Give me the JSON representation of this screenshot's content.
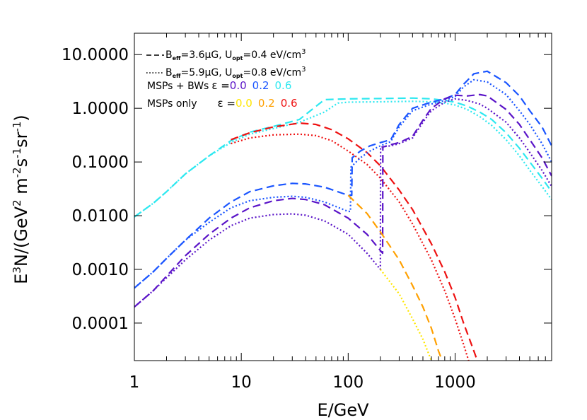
{
  "chart_data": {
    "type": "line",
    "xlabel": {
      "main": "E/GeV"
    },
    "ylabel": {
      "p1": "E",
      "p1sup": "3",
      "p2": "N/(GeV",
      "p2sup": "2",
      "p3": " m",
      "p3sup": "-2",
      "p4": "s",
      "p4sup": "-1",
      "p5": "sr",
      "p5sup": "-1",
      "p6": ")"
    },
    "xscale": "log",
    "yscale": "log",
    "xlim": [
      1,
      8000
    ],
    "ylim": [
      2e-05,
      25
    ],
    "xticks": [
      {
        "v": 1,
        "label": "1"
      },
      {
        "v": 10,
        "label": "10"
      },
      {
        "v": 100,
        "label": "100"
      },
      {
        "v": 1000,
        "label": "1000"
      }
    ],
    "yticks": [
      {
        "v": 0.0001,
        "label": "0.0001"
      },
      {
        "v": 0.001,
        "label": "0.0010"
      },
      {
        "v": 0.01,
        "label": "0.0100"
      },
      {
        "v": 0.1,
        "label": "0.1000"
      },
      {
        "v": 1,
        "label": "1.0000"
      },
      {
        "v": 10,
        "label": "10.0000"
      }
    ],
    "colors": {
      "purple": "#5a14c8",
      "blue": "#1a55ff",
      "cyan": "#2de8f0",
      "yellow": "#ffe600",
      "orange": "#ffa000",
      "red": "#ee1111"
    },
    "legend": {
      "line1": {
        "b": "B",
        "bsub": "eff",
        "bval": "=3.6μG, U",
        "usub": "opt",
        "uval": "=0.4 eV/cm",
        "usup": "3"
      },
      "line2": {
        "b": "B",
        "bsub": "eff",
        "bval": "=5.9μG, U",
        "usub": "opt",
        "uval": "=0.8 eV/cm",
        "usup": "3"
      },
      "line3": {
        "label": "MSPs + BWs",
        "eps": "ε =",
        "v1": "0.0",
        "v2": "0.2",
        "v3": "0.6"
      },
      "line4": {
        "label": "MSPs only",
        "eps": "ε =",
        "v1": "0.0",
        "v2": "0.2",
        "v3": "0.6"
      }
    },
    "series": [
      {
        "color": "cyan",
        "dash": "dash",
        "x": [
          1,
          1.5,
          2,
          3,
          5,
          8,
          12,
          20,
          35,
          60,
          100,
          200,
          400,
          600,
          800,
          1000,
          1300,
          1700,
          2200,
          3000,
          4000,
          5000,
          6500,
          8000
        ],
        "y": [
          0.0095,
          0.017,
          0.028,
          0.06,
          0.13,
          0.25,
          0.36,
          0.46,
          0.62,
          1.45,
          1.5,
          1.52,
          1.55,
          1.5,
          1.4,
          1.3,
          1.1,
          0.85,
          0.62,
          0.35,
          0.18,
          0.1,
          0.05,
          0.028
        ]
      },
      {
        "color": "cyan",
        "dash": "dot",
        "x": [
          1,
          1.5,
          2,
          3,
          5,
          8,
          12,
          20,
          35,
          60,
          80,
          100,
          200,
          400,
          600,
          800,
          1000,
          1300,
          1700,
          2200,
          3000,
          4000,
          5000,
          6500,
          8000
        ],
        "y": [
          0.0095,
          0.017,
          0.028,
          0.06,
          0.13,
          0.23,
          0.33,
          0.42,
          0.55,
          0.85,
          1.25,
          1.3,
          1.32,
          1.35,
          1.32,
          1.25,
          1.15,
          0.95,
          0.7,
          0.48,
          0.26,
          0.13,
          0.07,
          0.035,
          0.02
        ]
      },
      {
        "color": "red",
        "dash": "dash",
        "x": [
          8,
          12,
          20,
          35,
          50,
          70,
          100,
          150,
          200,
          300,
          400,
          600,
          800,
          1000,
          1200,
          1500,
          1700
        ],
        "y": [
          0.26,
          0.35,
          0.45,
          0.53,
          0.5,
          0.4,
          0.27,
          0.15,
          0.085,
          0.03,
          0.013,
          0.003,
          0.0009,
          0.0003,
          0.0001,
          3e-05,
          1.5e-05
        ]
      },
      {
        "color": "red",
        "dash": "dot",
        "x": [
          8,
          12,
          20,
          35,
          50,
          70,
          100,
          150,
          200,
          300,
          400,
          600,
          800,
          1000,
          1200,
          1400
        ],
        "y": [
          0.22,
          0.28,
          0.32,
          0.33,
          0.31,
          0.25,
          0.16,
          0.09,
          0.05,
          0.018,
          0.007,
          0.0015,
          0.0004,
          0.00012,
          4e-05,
          1.5e-05
        ]
      },
      {
        "color": "blue",
        "dash": "dash",
        "x": [
          1,
          1.5,
          2,
          3,
          5,
          8,
          12,
          20,
          30,
          40,
          60,
          100,
          108,
          109,
          130,
          160,
          200,
          250,
          300,
          400,
          600,
          800,
          1000,
          1200,
          1500,
          2000,
          3000,
          4000,
          5000,
          6500,
          8000
        ],
        "y": [
          0.00045,
          0.0009,
          0.0016,
          0.0035,
          0.009,
          0.018,
          0.028,
          0.036,
          0.04,
          0.039,
          0.034,
          0.024,
          0.024,
          0.12,
          0.16,
          0.2,
          0.23,
          0.26,
          0.5,
          1.0,
          1.3,
          1.5,
          1.8,
          2.8,
          4.4,
          4.9,
          3.0,
          1.7,
          0.9,
          0.45,
          0.2
        ]
      },
      {
        "color": "blue",
        "dash": "dot",
        "x": [
          1,
          1.5,
          2,
          3,
          5,
          8,
          12,
          20,
          30,
          40,
          60,
          100,
          105,
          106,
          130,
          160,
          200,
          250,
          300,
          400,
          600,
          800,
          1000,
          1200,
          1500,
          2000,
          3000,
          4000,
          5000,
          6500,
          8000
        ],
        "y": [
          0.00045,
          0.0009,
          0.0016,
          0.0035,
          0.0075,
          0.014,
          0.019,
          0.022,
          0.023,
          0.022,
          0.018,
          0.012,
          0.012,
          0.08,
          0.12,
          0.16,
          0.2,
          0.24,
          0.45,
          0.9,
          1.2,
          1.4,
          1.65,
          2.5,
          3.4,
          3.1,
          1.8,
          0.9,
          0.5,
          0.22,
          0.1
        ]
      },
      {
        "color": "purple",
        "dash": "dash",
        "x": [
          1,
          1.5,
          2,
          3,
          5,
          8,
          12,
          20,
          30,
          40,
          60,
          100,
          150,
          210,
          211,
          250,
          300,
          400,
          500,
          600,
          800,
          1000,
          1300,
          1700,
          2000,
          3000,
          4000,
          5000,
          6500,
          8000
        ],
        "y": [
          0.0002,
          0.0004,
          0.00075,
          0.0018,
          0.0045,
          0.009,
          0.014,
          0.019,
          0.021,
          0.02,
          0.016,
          0.009,
          0.0045,
          0.002,
          0.19,
          0.21,
          0.23,
          0.3,
          0.6,
          1.0,
          1.5,
          1.75,
          1.7,
          1.8,
          1.7,
          0.95,
          0.5,
          0.26,
          0.12,
          0.055
        ]
      },
      {
        "color": "purple",
        "dash": "dot",
        "x": [
          1,
          1.5,
          2,
          3,
          5,
          8,
          12,
          20,
          30,
          40,
          60,
          100,
          150,
          200,
          201,
          250,
          300,
          400,
          500,
          600,
          800,
          1000,
          1300,
          1700,
          2000,
          3000,
          4000,
          5000,
          6500,
          8000
        ],
        "y": [
          0.0002,
          0.0004,
          0.0007,
          0.0015,
          0.0035,
          0.0065,
          0.009,
          0.0105,
          0.0108,
          0.0102,
          0.008,
          0.0045,
          0.002,
          0.001,
          0.19,
          0.2,
          0.22,
          0.28,
          0.55,
          0.9,
          1.3,
          1.5,
          1.4,
          1.2,
          1.0,
          0.55,
          0.28,
          0.15,
          0.07,
          0.035
        ]
      },
      {
        "color": "orange",
        "dash": "dash",
        "x": [
          100,
          150,
          200,
          300,
          400,
          500,
          600,
          700,
          800
        ],
        "y": [
          0.024,
          0.011,
          0.005,
          0.0015,
          0.0005,
          0.0002,
          8e-05,
          3e-05,
          1.5e-05
        ]
      },
      {
        "color": "yellow",
        "dash": "dot",
        "x": [
          200,
          300,
          400,
          500,
          600,
          700
        ],
        "y": [
          0.001,
          0.00035,
          0.00012,
          5e-05,
          2e-05,
          1e-05
        ]
      }
    ]
  }
}
